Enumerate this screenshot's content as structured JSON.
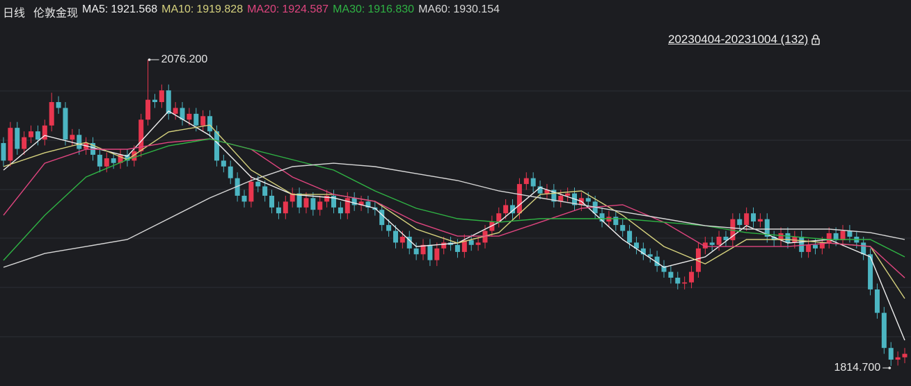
{
  "chart_data": {
    "type": "candlestick",
    "period": "日线",
    "title": "伦敦金现",
    "range_label": "20230404-20231004 (132)",
    "ylim": [
      1797.5,
      2109.4
    ],
    "up_color": "#e8364f",
    "down_color": "#4cb5c2",
    "open": [
      2005,
      1990,
      2018,
      2000,
      2010,
      2015,
      2008,
      2020,
      2040,
      2035,
      2008,
      2012,
      2000,
      2005,
      1995,
      1985,
      1992,
      1988,
      1995,
      1990,
      1998,
      2025,
      2042,
      2040,
      2050,
      2030,
      2035,
      2025,
      2030,
      2020,
      2028,
      2015,
      1990,
      1985,
      1975,
      1960,
      1955,
      1972,
      1968,
      1960,
      1950,
      1945,
      1955,
      1962,
      1950,
      1958,
      1948,
      1955,
      1960,
      1950,
      1945,
      1958,
      1952,
      1955,
      1950,
      1948,
      1935,
      1930,
      1920,
      1925,
      1915,
      1910,
      1918,
      1905,
      1915,
      1920,
      1918,
      1912,
      1922,
      1918,
      1920,
      1930,
      1938,
      1945,
      1952,
      1945,
      1970,
      1975,
      1968,
      1962,
      1965,
      1955,
      1960,
      1962,
      1952,
      1958,
      1955,
      1945,
      1938,
      1942,
      1935,
      1930,
      1920,
      1915,
      1910,
      1908,
      1900,
      1895,
      1890,
      1885,
      1886,
      1895,
      1915,
      1920,
      1918,
      1925,
      1922,
      1940,
      1935,
      1945,
      1938,
      1940,
      1925,
      1922,
      1928,
      1920,
      1925,
      1912,
      1918,
      1915,
      1920,
      1928,
      1922,
      1930,
      1925,
      1920,
      1910,
      1880,
      1860,
      1830,
      1820,
      1822
    ],
    "high": [
      2010,
      2023,
      2023,
      2015,
      2020,
      2020,
      2025,
      2048,
      2045,
      2040,
      2017,
      2017,
      2010,
      2010,
      2000,
      1997,
      1997,
      2000,
      2000,
      2003,
      2030,
      2076.2,
      2047,
      2055,
      2055,
      2040,
      2040,
      2035,
      2035,
      2033,
      2033,
      2020,
      1995,
      1990,
      1980,
      1965,
      1977,
      1977,
      1973,
      1965,
      1955,
      1960,
      1967,
      1967,
      1963,
      1963,
      1960,
      1965,
      1965,
      1955,
      1963,
      1963,
      1960,
      1960,
      1955,
      1953,
      1940,
      1935,
      1930,
      1930,
      1920,
      1923,
      1923,
      1920,
      1925,
      1925,
      1923,
      1927,
      1927,
      1925,
      1935,
      1943,
      1950,
      1957,
      1957,
      1975,
      1980,
      1980,
      1973,
      1970,
      1970,
      1965,
      1967,
      1967,
      1963,
      1963,
      1960,
      1950,
      1947,
      1947,
      1940,
      1935,
      1925,
      1920,
      1915,
      1913,
      1905,
      1900,
      1895,
      1891,
      1900,
      1920,
      1925,
      1925,
      1930,
      1930,
      1945,
      1945,
      1950,
      1950,
      1945,
      1945,
      1930,
      1933,
      1933,
      1930,
      1930,
      1923,
      1923,
      1925,
      1933,
      1933,
      1935,
      1935,
      1930,
      1925,
      1915,
      1885,
      1865,
      1835,
      1827,
      1830
    ],
    "low": [
      1985,
      1985,
      1995,
      1995,
      2005,
      2003,
      2003,
      2015,
      2030,
      2003,
      2003,
      1995,
      1995,
      1990,
      1980,
      1980,
      1983,
      1983,
      1985,
      1985,
      1993,
      2020,
      2035,
      2035,
      2025,
      2025,
      2020,
      2020,
      2015,
      2015,
      2010,
      1985,
      1980,
      1970,
      1955,
      1950,
      1950,
      1963,
      1955,
      1945,
      1940,
      1940,
      1950,
      1945,
      1945,
      1943,
      1943,
      1950,
      1945,
      1940,
      1940,
      1947,
      1947,
      1945,
      1943,
      1930,
      1925,
      1915,
      1915,
      1910,
      1905,
      1905,
      1900,
      1900,
      1910,
      1913,
      1907,
      1907,
      1913,
      1913,
      1915,
      1925,
      1933,
      1940,
      1940,
      1940,
      1965,
      1963,
      1957,
      1957,
      1950,
      1950,
      1955,
      1947,
      1947,
      1950,
      1940,
      1933,
      1933,
      1930,
      1925,
      1915,
      1910,
      1905,
      1903,
      1895,
      1890,
      1885,
      1880,
      1880,
      1881,
      1890,
      1910,
      1913,
      1913,
      1917,
      1917,
      1930,
      1930,
      1933,
      1933,
      1920,
      1917,
      1917,
      1915,
      1915,
      1907,
      1907,
      1910,
      1910,
      1915,
      1917,
      1917,
      1920,
      1915,
      1905,
      1875,
      1855,
      1825,
      1814.7,
      1815,
      1817
    ],
    "close": [
      1990,
      2018,
      2000,
      2010,
      2015,
      2008,
      2020,
      2040,
      2035,
      2008,
      2012,
      2000,
      2005,
      1995,
      1985,
      1992,
      1988,
      1995,
      1990,
      1998,
      2025,
      2042,
      2040,
      2050,
      2030,
      2035,
      2025,
      2030,
      2020,
      2028,
      2015,
      1990,
      1985,
      1975,
      1960,
      1955,
      1972,
      1968,
      1960,
      1950,
      1945,
      1955,
      1962,
      1950,
      1958,
      1948,
      1955,
      1960,
      1950,
      1945,
      1958,
      1952,
      1955,
      1950,
      1948,
      1935,
      1930,
      1920,
      1925,
      1915,
      1910,
      1918,
      1905,
      1915,
      1920,
      1918,
      1912,
      1922,
      1918,
      1920,
      1930,
      1938,
      1945,
      1952,
      1945,
      1970,
      1975,
      1968,
      1962,
      1965,
      1955,
      1960,
      1962,
      1952,
      1958,
      1955,
      1945,
      1938,
      1942,
      1935,
      1930,
      1920,
      1915,
      1910,
      1908,
      1900,
      1895,
      1890,
      1885,
      1886,
      1895,
      1915,
      1920,
      1918,
      1925,
      1922,
      1940,
      1935,
      1945,
      1938,
      1940,
      1925,
      1922,
      1928,
      1920,
      1925,
      1912,
      1918,
      1915,
      1920,
      1928,
      1922,
      1930,
      1925,
      1920,
      1910,
      1880,
      1860,
      1830,
      1820,
      1822,
      1825
    ],
    "ma_x": [
      0,
      6,
      12,
      18,
      24,
      30,
      36,
      42,
      48,
      54,
      60,
      66,
      72,
      78,
      84,
      90,
      96,
      102,
      108,
      114,
      120,
      126,
      131
    ],
    "ma": [
      {
        "label": "MA5:",
        "value": 1921.568,
        "color": "#f0f0f0",
        "values": [
          1981.9,
          2011.5,
          2002.6,
          1993.7,
          2032.3,
          2011.5,
          1976.0,
          1961.1,
          1958.2,
          1949.3,
          1916.6,
          1919.6,
          1937.4,
          1967.1,
          1955.2,
          1922.6,
          1898.9,
          1907.8,
          1934.4,
          1919.6,
          1922.6,
          1907.8,
          1836.6
        ]
      },
      {
        "label": "MA10:",
        "value": 1919.828,
        "color": "#d6d27e",
        "values": [
          1984.9,
          1996.7,
          2005.6,
          1990.8,
          2014.5,
          2020.4,
          1981.9,
          1961.1,
          1961.1,
          1955.2,
          1931.5,
          1919.6,
          1928.5,
          1961.1,
          1964.1,
          1943.3,
          1916.6,
          1901.8,
          1922.6,
          1922.6,
          1919.6,
          1916.6,
          1872.2
        ]
      },
      {
        "label": "MA20:",
        "value": 1924.587,
        "color": "#e0457f",
        "values": [
          1943.3,
          1987.8,
          1999.7,
          1999.7,
          2005.6,
          2008.6,
          1999.7,
          1976.0,
          1961.1,
          1955.2,
          1937.4,
          1925.5,
          1925.5,
          1937.4,
          1949.3,
          1952.3,
          1937.4,
          1916.6,
          1916.6,
          1916.6,
          1919.6,
          1916.6,
          1889.9
        ]
      },
      {
        "label": "MA30:",
        "value": {
          "value": 1916.83,
          "label": "1916.830"
        },
        "color": "#2fb344",
        "values": [
          1904.8,
          1943.3,
          1976.0,
          1990.8,
          2002.6,
          2008.6,
          1999.7,
          1990.8,
          1981.9,
          1964.1,
          1949.3,
          1940.4,
          1937.4,
          1940.4,
          1940.4,
          1940.4,
          1937.4,
          1934.4,
          1928.5,
          1925.5,
          1922.6,
          1922.6,
          1907.8
        ]
      },
      {
        "label": "MA60:",
        "value": 1930.154,
        "color": "#d8d8d8",
        "values": [
          1898.9,
          1910.7,
          1916.6,
          1922.6,
          1940.4,
          1958.2,
          1973.0,
          1984.9,
          1987.8,
          1984.9,
          1978.9,
          1973.0,
          1964.1,
          1958.2,
          1952.3,
          1946.3,
          1940.4,
          1934.4,
          1931.5,
          1931.5,
          1931.5,
          1928.5,
          1922.6
        ]
      }
    ],
    "max_label": {
      "value": 2076.2,
      "label": "2076.200"
    },
    "min_label": {
      "value": 1814.7,
      "label": "1814.700"
    }
  }
}
